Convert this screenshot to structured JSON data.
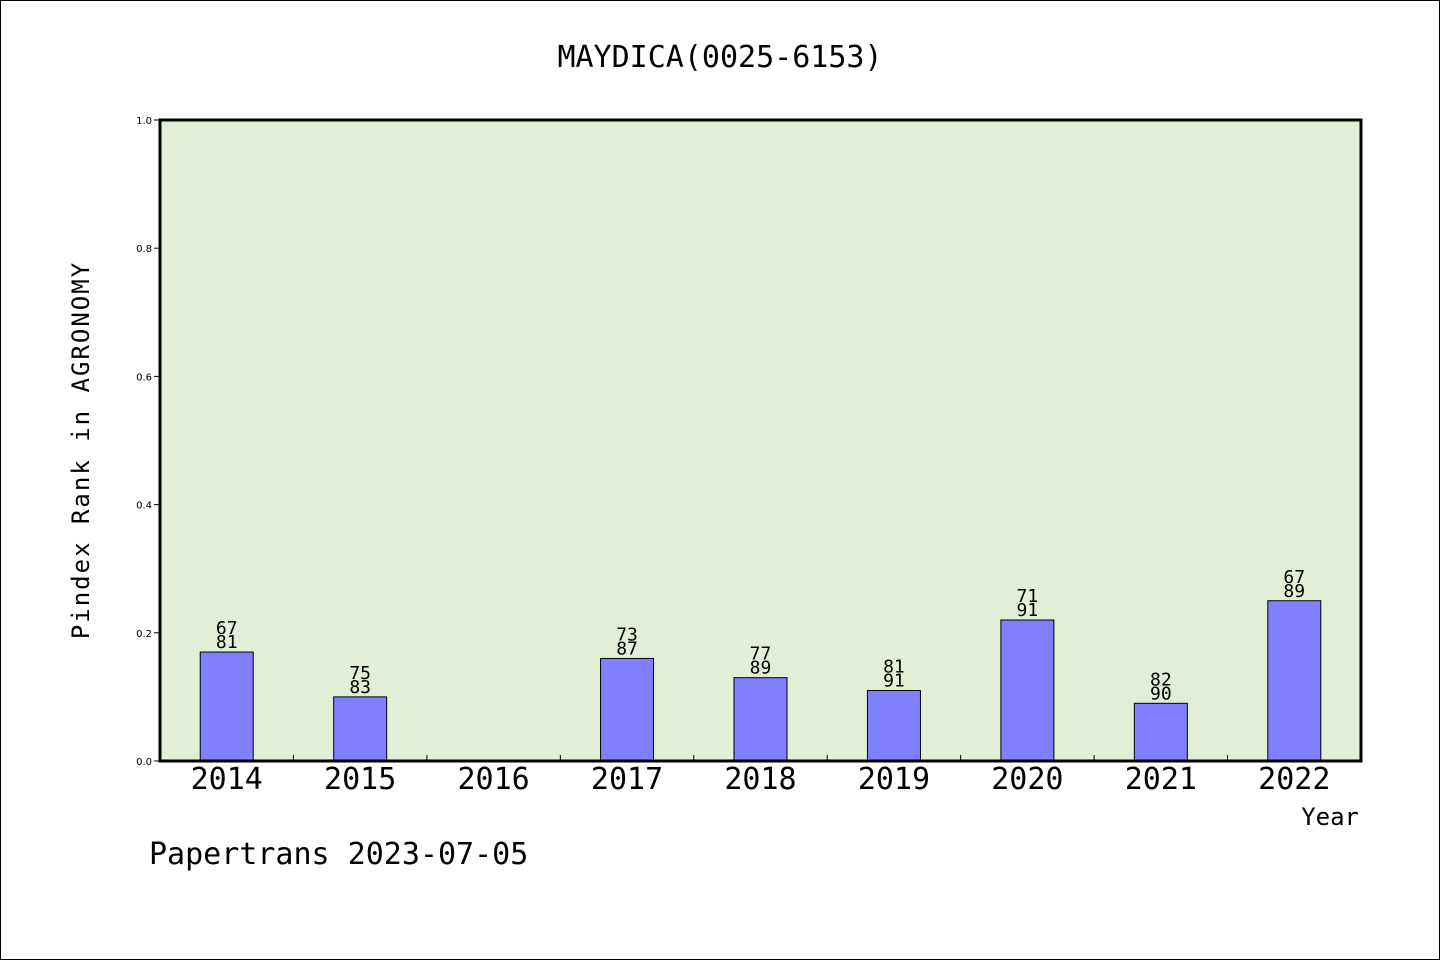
{
  "chart_data": {
    "type": "bar",
    "title": "MAYDICA(0025-6153)",
    "xlabel": "Year",
    "ylabel": "Pindex Rank in AGRONOMY",
    "ylim": [
      0,
      1.0
    ],
    "yticks": [
      "0.0",
      "0.2",
      "0.4",
      "0.6",
      "0.8",
      "1.0"
    ],
    "categories": [
      "2014",
      "2015",
      "2016",
      "2017",
      "2018",
      "2019",
      "2020",
      "2021",
      "2022"
    ],
    "values": [
      0.17,
      0.1,
      null,
      0.16,
      0.13,
      0.11,
      0.22,
      0.09,
      0.25
    ],
    "labels": [
      [
        "67",
        "81"
      ],
      [
        "75",
        "83"
      ],
      null,
      [
        "73",
        "87"
      ],
      [
        "77",
        "89"
      ],
      [
        "81",
        "91"
      ],
      [
        "71",
        "91"
      ],
      [
        "82",
        "90"
      ],
      [
        "67",
        "89"
      ]
    ],
    "grid": false,
    "colors": {
      "plot_background": "#e2efd6",
      "bar": "#8080ff"
    }
  },
  "footer": "Papertrans 2023-07-05"
}
